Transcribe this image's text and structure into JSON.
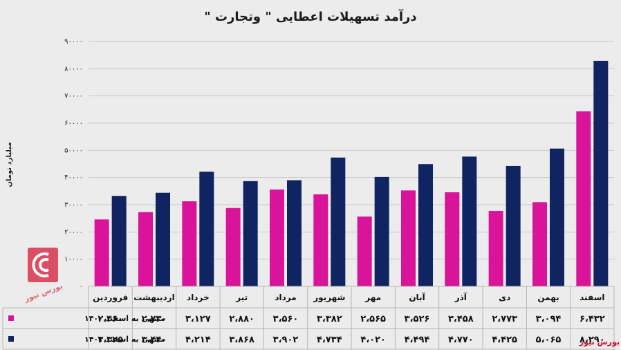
{
  "chart_data": {
    "type": "bar",
    "title": "درآمد تسهیلات اعطایی \" وتجارت \"",
    "ylabel": "میلیارد تومان",
    "ylim": [
      0,
      9000
    ],
    "yticks": [
      "۰",
      "۱۰۰۰۰",
      "۲۰۰۰۰",
      "۳۰۰۰۰",
      "۴۰۰۰۰",
      "۵۰۰۰۰",
      "۶۰۰۰۰",
      "۷۰۰۰۰",
      "۸۰۰۰۰",
      "۹۰۰۰۰"
    ],
    "grid": true,
    "categories": [
      "فروردین",
      "اردیبهشت",
      "خرداد",
      "تیر",
      "مرداد",
      "شهریور",
      "مهر",
      "آبان",
      "آذر",
      "دی",
      "بهمن",
      "اسفند"
    ],
    "series": [
      {
        "name": "منتهی به اسفند ۱۴۰۰",
        "color": "#d9139a",
        "values": [
          2460,
          2730,
          3127,
          2880,
          3560,
          3382,
          2565,
          3526,
          3458,
          2773,
          3094,
          6432
        ],
        "labels": [
          "۲،۴۶۰",
          "۲،۷۳۰",
          "۳،۱۲۷",
          "۲،۸۸۰",
          "۳،۵۶۰",
          "۳،۳۸۲",
          "۲،۵۶۵",
          "۳،۵۲۶",
          "۳،۴۵۸",
          "۲،۷۷۳",
          "۳،۰۹۴",
          "۶،۴۳۲"
        ]
      },
      {
        "name": "منتهی به اسفند ۱۴۰۱",
        "color": "#0f2460",
        "values": [
          3325,
          3440,
          4214,
          3868,
          3902,
          4734,
          4020,
          4494,
          4770,
          4425,
          5065,
          8290
        ],
        "labels": [
          "۳،۳۲۵",
          "۳،۴۴۰",
          "۴،۲۱۴",
          "۳،۸۶۸",
          "۳،۹۰۲",
          "۴،۷۳۴",
          "۴،۰۲۰",
          "۴،۴۹۴",
          "۴،۷۷۰",
          "۴،۴۲۵",
          "۵،۰۶۵",
          "۸،۲۹۰"
        ]
      }
    ]
  },
  "watermark": {
    "text_left": "بورس نیوز",
    "text_right": "بورس نیوز",
    "color": "#c8102e"
  }
}
